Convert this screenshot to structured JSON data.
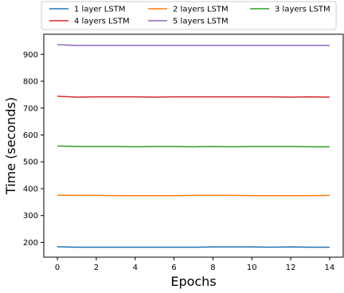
{
  "chart_data": {
    "type": "line",
    "title": "",
    "xlabel": "Epochs",
    "ylabel": "Time (seconds)",
    "xlim": [
      -0.7,
      14.7
    ],
    "ylim": [
      145,
      975
    ],
    "xticks": [
      0,
      2,
      4,
      6,
      8,
      10,
      12,
      14
    ],
    "yticks": [
      200,
      300,
      400,
      500,
      600,
      700,
      800,
      900
    ],
    "grid": false,
    "legend": {
      "placement": "top, above plot, 3 columns"
    },
    "x": [
      0,
      1,
      2,
      3,
      4,
      5,
      6,
      7,
      8,
      9,
      10,
      11,
      12,
      13,
      14
    ],
    "series": [
      {
        "name": "1 layer LSTM",
        "color": "#1f77b4",
        "values": [
          184,
          182,
          182,
          182,
          182,
          182,
          182,
          182,
          183,
          183,
          183,
          182,
          183,
          182,
          182
        ]
      },
      {
        "name": "2 layers LSTM",
        "color": "#ff7f0e",
        "values": [
          376,
          375,
          375,
          374,
          374,
          374,
          374,
          375,
          375,
          375,
          374,
          374,
          374,
          374,
          375
        ]
      },
      {
        "name": "3 layers LSTM",
        "color": "#2ca02c",
        "values": [
          559,
          557,
          557,
          557,
          556,
          557,
          557,
          556,
          557,
          556,
          557,
          557,
          557,
          556,
          556
        ]
      },
      {
        "name": "4 layers LSTM",
        "color": "#d62728",
        "values": [
          744,
          741,
          742,
          742,
          742,
          741,
          742,
          742,
          742,
          742,
          742,
          742,
          741,
          742,
          741
        ]
      },
      {
        "name": "5 layers LSTM",
        "color": "#9467bd",
        "values": [
          936,
          933,
          933,
          933,
          933,
          933,
          933,
          933,
          933,
          933,
          933,
          933,
          933,
          933,
          933
        ]
      }
    ]
  }
}
